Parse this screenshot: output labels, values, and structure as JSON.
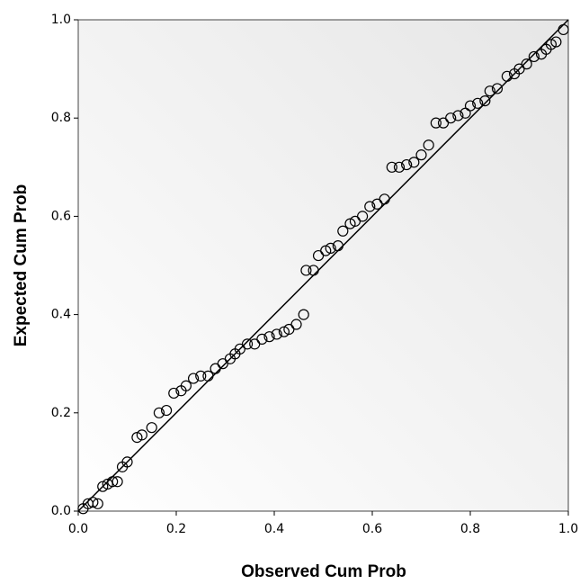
{
  "chart_data": {
    "type": "scatter",
    "xlabel": "Observed Cum Prob",
    "ylabel": "Expected Cum Prob",
    "xlim": [
      0,
      1
    ],
    "ylim": [
      0,
      1
    ],
    "xticks": [
      {
        "value": 0,
        "label": "0.0"
      },
      {
        "value": 0.2,
        "label": "0.2"
      },
      {
        "value": 0.4,
        "label": "0.4"
      },
      {
        "value": 0.6,
        "label": "0.6"
      },
      {
        "value": 0.8,
        "label": "0.8"
      },
      {
        "value": 1,
        "label": "1.0"
      }
    ],
    "yticks": [
      {
        "value": 0,
        "label": "0.0"
      },
      {
        "value": 0.2,
        "label": "0.2"
      },
      {
        "value": 0.4,
        "label": "0.4"
      },
      {
        "value": 0.6,
        "label": "0.6"
      },
      {
        "value": 0.8,
        "label": "0.8"
      },
      {
        "value": 1,
        "label": "1.0"
      }
    ],
    "reference_line": true,
    "series": [
      {
        "color": "#000000",
        "x": [
          0.01,
          0.02,
          0.03,
          0.04,
          0.05,
          0.06,
          0.07,
          0.08,
          0.09,
          0.1,
          0.12,
          0.13,
          0.15,
          0.165,
          0.18,
          0.195,
          0.21,
          0.22,
          0.235,
          0.25,
          0.265,
          0.28,
          0.295,
          0.31,
          0.32,
          0.33,
          0.345,
          0.36,
          0.375,
          0.39,
          0.405,
          0.42,
          0.43,
          0.445,
          0.46,
          0.465,
          0.48,
          0.49,
          0.505,
          0.515,
          0.53,
          0.54,
          0.555,
          0.565,
          0.58,
          0.595,
          0.61,
          0.625,
          0.64,
          0.655,
          0.67,
          0.685,
          0.7,
          0.715,
          0.73,
          0.745,
          0.76,
          0.775,
          0.79,
          0.8,
          0.815,
          0.83,
          0.84,
          0.855,
          0.875,
          0.89,
          0.9,
          0.915,
          0.93,
          0.945,
          0.955,
          0.965,
          0.975,
          0.99
        ],
        "values": [
          0.005,
          0.015,
          0.018,
          0.015,
          0.05,
          0.055,
          0.06,
          0.06,
          0.09,
          0.1,
          0.15,
          0.155,
          0.17,
          0.2,
          0.205,
          0.24,
          0.245,
          0.255,
          0.27,
          0.275,
          0.275,
          0.29,
          0.3,
          0.31,
          0.32,
          0.33,
          0.34,
          0.34,
          0.35,
          0.355,
          0.36,
          0.365,
          0.37,
          0.38,
          0.4,
          0.49,
          0.49,
          0.52,
          0.53,
          0.535,
          0.54,
          0.57,
          0.585,
          0.59,
          0.6,
          0.62,
          0.625,
          0.635,
          0.7,
          0.7,
          0.705,
          0.71,
          0.725,
          0.745,
          0.79,
          0.79,
          0.8,
          0.805,
          0.81,
          0.825,
          0.83,
          0.835,
          0.855,
          0.86,
          0.885,
          0.89,
          0.9,
          0.91,
          0.925,
          0.93,
          0.94,
          0.95,
          0.955,
          0.98
        ]
      }
    ]
  }
}
